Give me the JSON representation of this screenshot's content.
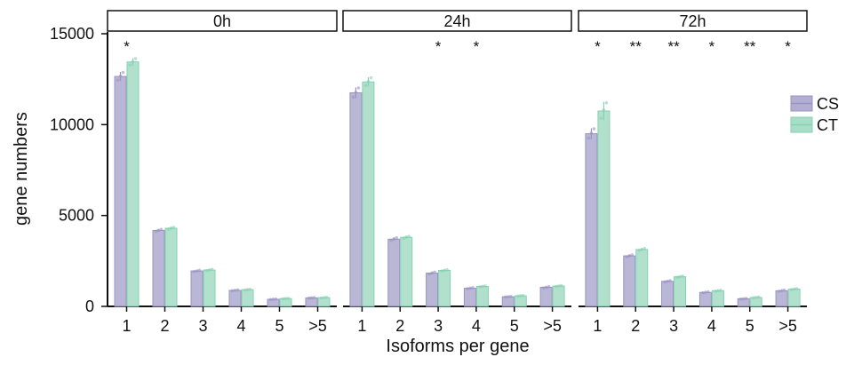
{
  "chart_data": {
    "type": "bar",
    "ylabel": "gene numbers",
    "xlabel": "Isoforms per gene",
    "ylim": [
      0,
      15000
    ],
    "yticks": [
      "0",
      "5000",
      "10000",
      "15000"
    ],
    "categories": [
      "1",
      "2",
      "3",
      "4",
      "5",
      ">5"
    ],
    "legend": {
      "placement": "right",
      "entries": [
        "CS",
        "CT"
      ]
    },
    "colors": {
      "CS": "#b3aed1",
      "CT": "#a8dec8",
      "CS_edge": "#9a94c2",
      "CT_edge": "#86d1b2"
    },
    "panels": [
      {
        "label": "0h",
        "series": [
          {
            "name": "CS",
            "values": [
              12650,
              4180,
              1950,
              880,
              390,
              470
            ],
            "errors": [
              250,
              60,
              40,
              30,
              15,
              20
            ]
          },
          {
            "name": "CT",
            "values": [
              13450,
              4300,
              2000,
              920,
              430,
              480
            ],
            "errors": [
              200,
              60,
              40,
              30,
              15,
              20
            ]
          }
        ],
        "significance": [
          "*",
          "",
          "",
          "",
          "",
          ""
        ]
      },
      {
        "label": "24h",
        "series": [
          {
            "name": "CS",
            "values": [
              11750,
              3700,
              1830,
              1000,
              530,
              1050
            ],
            "errors": [
              300,
              80,
              60,
              40,
              20,
              40
            ]
          },
          {
            "name": "CT",
            "values": [
              12350,
              3800,
              1980,
              1100,
              580,
              1120
            ],
            "errors": [
              250,
              60,
              40,
              30,
              20,
              30
            ]
          }
        ],
        "significance": [
          "",
          "",
          "*",
          "*",
          "",
          ""
        ]
      },
      {
        "label": "72h",
        "series": [
          {
            "name": "CS",
            "values": [
              9500,
              2780,
              1380,
              770,
              420,
              860
            ],
            "errors": [
              300,
              60,
              40,
              30,
              20,
              40
            ]
          },
          {
            "name": "CT",
            "values": [
              10750,
              3130,
              1630,
              860,
              490,
              950
            ],
            "errors": [
              500,
              60,
              40,
              30,
              20,
              30
            ]
          }
        ],
        "significance": [
          "*",
          "**",
          "**",
          "*",
          "**",
          "*"
        ]
      }
    ]
  }
}
